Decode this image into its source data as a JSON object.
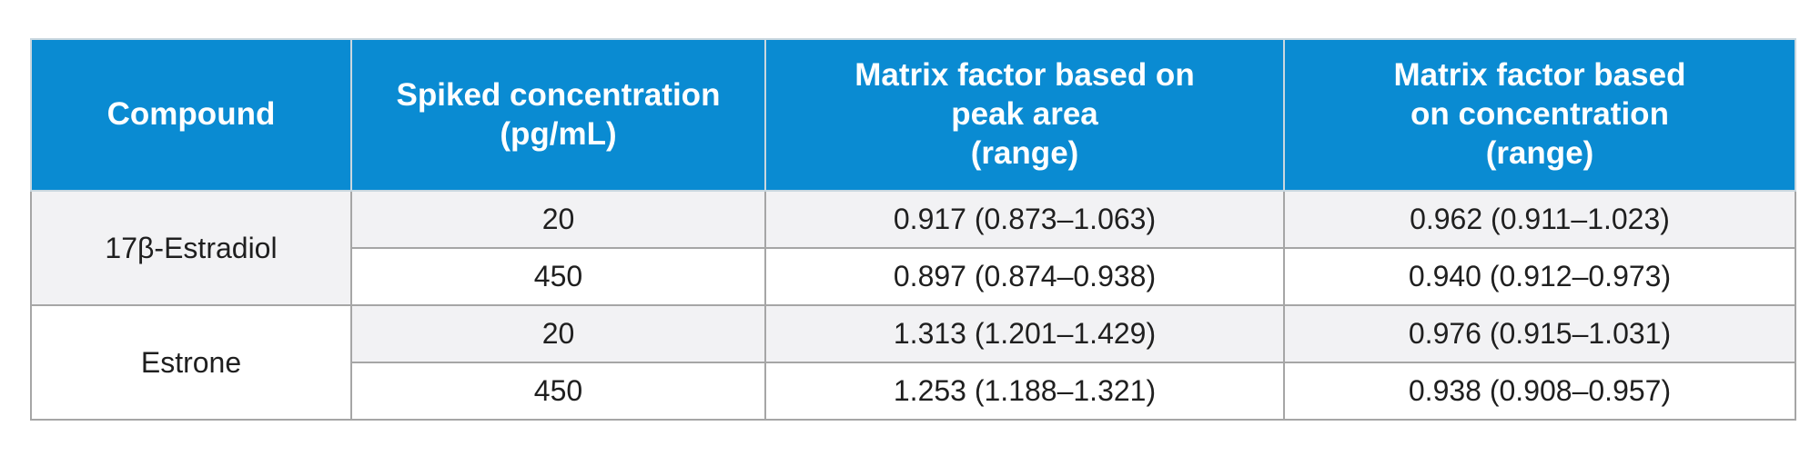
{
  "table": {
    "headers": [
      {
        "lines": [
          "Compound"
        ]
      },
      {
        "lines": [
          "Spiked concentration",
          "(pg/mL)"
        ]
      },
      {
        "lines": [
          "Matrix factor based on",
          "peak area",
          "(range)"
        ]
      },
      {
        "lines": [
          "Matrix factor based",
          "on concentration",
          "(range)"
        ]
      }
    ],
    "groups": [
      {
        "compound": "17β-Estradiol",
        "rows": [
          {
            "spiked": "20",
            "mf_area": "0.917 (0.873–1.063)",
            "mf_conc": "0.962 (0.911–1.023)"
          },
          {
            "spiked": "450",
            "mf_area": "0.897 (0.874–0.938)",
            "mf_conc": "0.940 (0.912–0.973)"
          }
        ]
      },
      {
        "compound": "Estrone",
        "rows": [
          {
            "spiked": "20",
            "mf_area": "1.313 (1.201–1.429)",
            "mf_conc": "0.976 (0.915–1.031)"
          },
          {
            "spiked": "450",
            "mf_area": "1.253 (1.188–1.321)",
            "mf_conc": "0.938 (0.908–0.957)"
          }
        ]
      }
    ],
    "colors": {
      "header_bg": "#0a8bd2",
      "header_text": "#ffffff",
      "row_shade": "#f2f2f4",
      "border": "#a6a6a6"
    }
  }
}
